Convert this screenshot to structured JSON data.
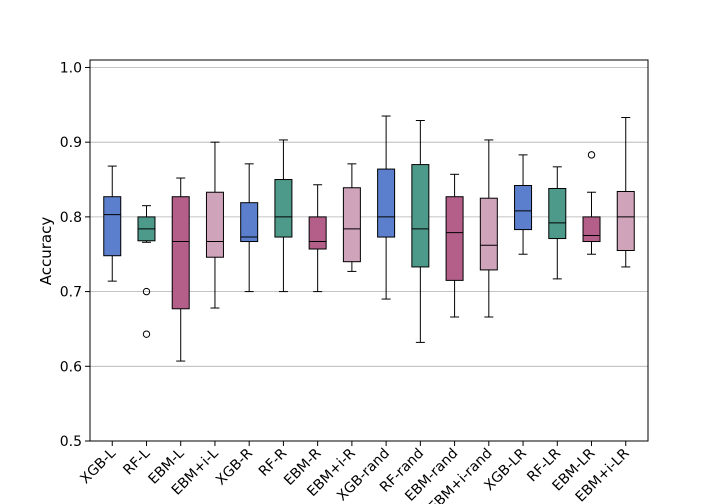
{
  "chart_data": {
    "type": "box",
    "title": "",
    "xlabel": "",
    "ylabel": "Accuracy",
    "ylim": [
      0.5,
      1.01
    ],
    "yticks": [
      0.5,
      0.6,
      0.7,
      0.8,
      0.9,
      1.0
    ],
    "ytick_labels": [
      "0.5",
      "0.6",
      "0.7",
      "0.8",
      "0.9",
      "1.0"
    ],
    "grid": "horizontal",
    "categories": [
      "XGB-L",
      "RF-L",
      "EBM-L",
      "EBM+i-L",
      "XGB-R",
      "RF-R",
      "EBM-R",
      "EBM+i-R",
      "XGB-rand",
      "RF-rand",
      "EBM-rand",
      "EBM+i-rand",
      "XGB-LR",
      "RF-LR",
      "EBM-LR",
      "EBM+i-LR"
    ],
    "colors": [
      "#5b7fcc",
      "#4e9a8a",
      "#b45f8a",
      "#cfa3ba",
      "#5b7fcc",
      "#4e9a8a",
      "#b45f8a",
      "#cfa3ba",
      "#5b7fcc",
      "#4e9a8a",
      "#b45f8a",
      "#cfa3ba",
      "#5b7fcc",
      "#4e9a8a",
      "#b45f8a",
      "#cfa3ba"
    ],
    "boxes": [
      {
        "whislo": 0.714,
        "q1": 0.748,
        "med": 0.803,
        "q3": 0.827,
        "whishi": 0.868,
        "fliers": []
      },
      {
        "whislo": 0.766,
        "q1": 0.768,
        "med": 0.784,
        "q3": 0.8,
        "whishi": 0.815,
        "fliers": [
          0.7,
          0.643
        ]
      },
      {
        "whislo": 0.607,
        "q1": 0.677,
        "med": 0.767,
        "q3": 0.827,
        "whishi": 0.852,
        "fliers": []
      },
      {
        "whislo": 0.678,
        "q1": 0.746,
        "med": 0.767,
        "q3": 0.833,
        "whishi": 0.9,
        "fliers": []
      },
      {
        "whislo": 0.7,
        "q1": 0.767,
        "med": 0.773,
        "q3": 0.819,
        "whishi": 0.871,
        "fliers": []
      },
      {
        "whislo": 0.7,
        "q1": 0.773,
        "med": 0.8,
        "q3": 0.85,
        "whishi": 0.903,
        "fliers": []
      },
      {
        "whislo": 0.7,
        "q1": 0.757,
        "med": 0.767,
        "q3": 0.8,
        "whishi": 0.843,
        "fliers": []
      },
      {
        "whislo": 0.727,
        "q1": 0.74,
        "med": 0.784,
        "q3": 0.839,
        "whishi": 0.871,
        "fliers": []
      },
      {
        "whislo": 0.69,
        "q1": 0.773,
        "med": 0.8,
        "q3": 0.864,
        "whishi": 0.935,
        "fliers": []
      },
      {
        "whislo": 0.632,
        "q1": 0.733,
        "med": 0.784,
        "q3": 0.87,
        "whishi": 0.929,
        "fliers": []
      },
      {
        "whislo": 0.666,
        "q1": 0.715,
        "med": 0.779,
        "q3": 0.827,
        "whishi": 0.857,
        "fliers": []
      },
      {
        "whislo": 0.666,
        "q1": 0.729,
        "med": 0.762,
        "q3": 0.825,
        "whishi": 0.903,
        "fliers": []
      },
      {
        "whislo": 0.75,
        "q1": 0.783,
        "med": 0.808,
        "q3": 0.842,
        "whishi": 0.883,
        "fliers": []
      },
      {
        "whislo": 0.717,
        "q1": 0.771,
        "med": 0.792,
        "q3": 0.838,
        "whishi": 0.867,
        "fliers": []
      },
      {
        "whislo": 0.75,
        "q1": 0.767,
        "med": 0.775,
        "q3": 0.8,
        "whishi": 0.833,
        "fliers": [
          0.883
        ]
      },
      {
        "whislo": 0.733,
        "q1": 0.755,
        "med": 0.8,
        "q3": 0.834,
        "whishi": 0.933,
        "fliers": []
      }
    ]
  }
}
